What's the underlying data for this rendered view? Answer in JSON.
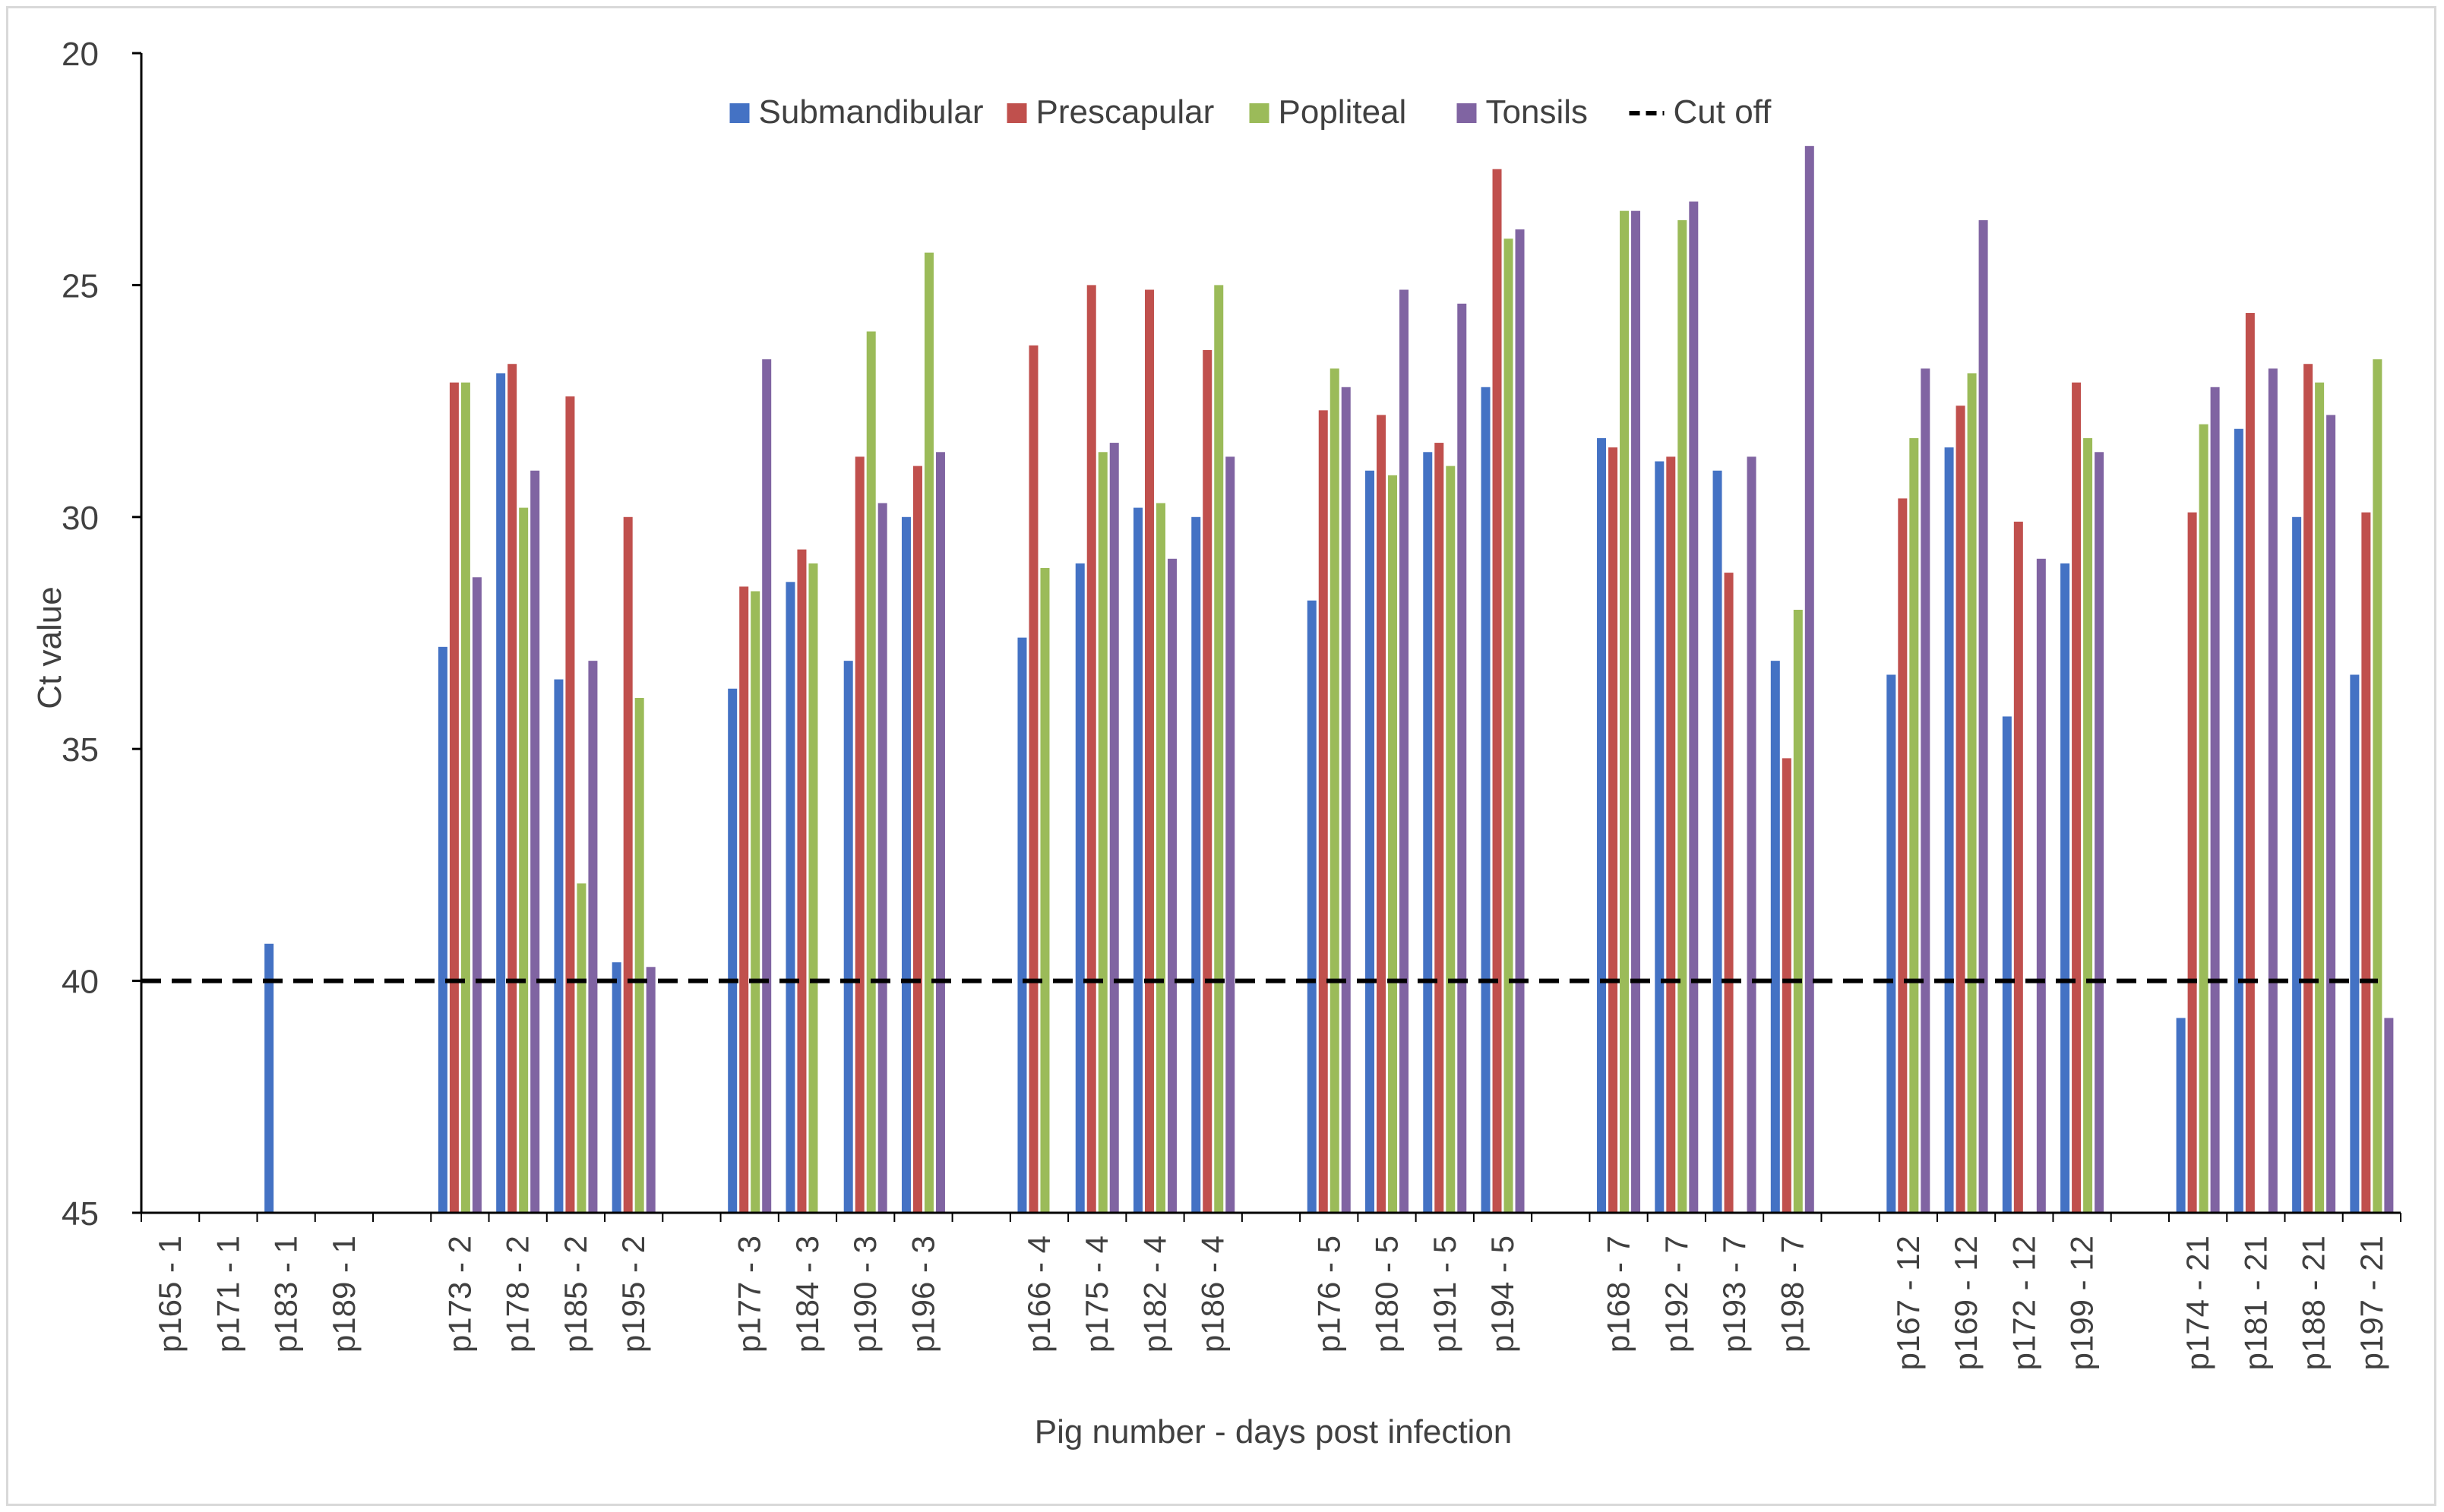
{
  "chart_data": {
    "type": "bar",
    "title": "",
    "xlabel": "Pig number - days post infection",
    "ylabel": "Ct value",
    "ylim": [
      45,
      20
    ],
    "y_inverted": true,
    "y_ticks": [
      20,
      25,
      30,
      35,
      40,
      45
    ],
    "baseline": 45,
    "legend_position": "top-center",
    "groups": [
      {
        "day": 1,
        "categories": [
          "p165 - 1",
          "p171 - 1",
          "p183 - 1",
          "p189 - 1"
        ]
      },
      {
        "day": 2,
        "categories": [
          "p173 - 2",
          "p178 - 2",
          "p185 - 2",
          "p195 - 2"
        ]
      },
      {
        "day": 3,
        "categories": [
          "p177 - 3",
          "p184 - 3",
          "p190 - 3",
          "p196 - 3"
        ]
      },
      {
        "day": 4,
        "categories": [
          "p166 - 4",
          "p175 - 4",
          "p182 - 4",
          "p186 - 4"
        ]
      },
      {
        "day": 5,
        "categories": [
          "p176 - 5",
          "p180 - 5",
          "p191 - 5",
          "p194 - 5"
        ]
      },
      {
        "day": 7,
        "categories": [
          "p168 - 7",
          "p192 - 7",
          "p193 - 7",
          "p198 - 7"
        ]
      },
      {
        "day": 12,
        "categories": [
          "p167 - 12",
          "p169 - 12",
          "p172 - 12",
          "p199 - 12"
        ]
      },
      {
        "day": 21,
        "categories": [
          "p174 - 21",
          "p181 - 21",
          "p188 - 21",
          "p197 - 21"
        ]
      }
    ],
    "series": [
      {
        "name": "Submandibular",
        "color": "#4472c4",
        "values": [
          null,
          null,
          39.2,
          null,
          32.8,
          26.9,
          33.5,
          39.6,
          33.7,
          31.4,
          33.1,
          30.0,
          32.6,
          31.0,
          29.8,
          30.0,
          31.8,
          29.0,
          28.6,
          27.2,
          28.3,
          28.8,
          29.0,
          33.1,
          33.4,
          28.5,
          34.3,
          31.0,
          40.8,
          28.1,
          30.0,
          33.4
        ]
      },
      {
        "name": "Prescapular",
        "color": "#c0504d",
        "values": [
          null,
          null,
          null,
          null,
          27.1,
          26.7,
          27.4,
          30.0,
          31.5,
          30.7,
          28.7,
          28.9,
          26.3,
          25.0,
          25.1,
          26.4,
          27.7,
          27.8,
          28.4,
          22.5,
          28.5,
          28.7,
          31.2,
          35.2,
          29.6,
          27.6,
          30.1,
          27.1,
          29.9,
          25.6,
          26.7,
          29.9
        ]
      },
      {
        "name": "Popliteal",
        "color": "#9bbb59",
        "values": [
          null,
          null,
          null,
          null,
          27.1,
          29.8,
          37.9,
          33.9,
          31.6,
          31.0,
          26.0,
          24.3,
          31.1,
          28.6,
          29.7,
          25.0,
          26.8,
          29.1,
          28.9,
          24.0,
          23.4,
          23.6,
          null,
          32.0,
          28.3,
          26.9,
          null,
          28.3,
          28.0,
          null,
          27.1,
          26.6
        ]
      },
      {
        "name": "Tonsils",
        "color": "#8064a2",
        "values": [
          null,
          null,
          null,
          null,
          31.3,
          29.0,
          33.1,
          39.7,
          26.6,
          null,
          29.7,
          28.6,
          null,
          28.4,
          30.9,
          28.7,
          27.2,
          25.1,
          25.4,
          23.8,
          23.4,
          23.2,
          28.7,
          22.0,
          26.8,
          23.6,
          30.9,
          28.6,
          27.2,
          26.8,
          27.8,
          40.8
        ]
      }
    ],
    "reference_lines": [
      {
        "name": "Cut off",
        "value": 40,
        "style": "dashed",
        "color": "#000000"
      }
    ]
  }
}
